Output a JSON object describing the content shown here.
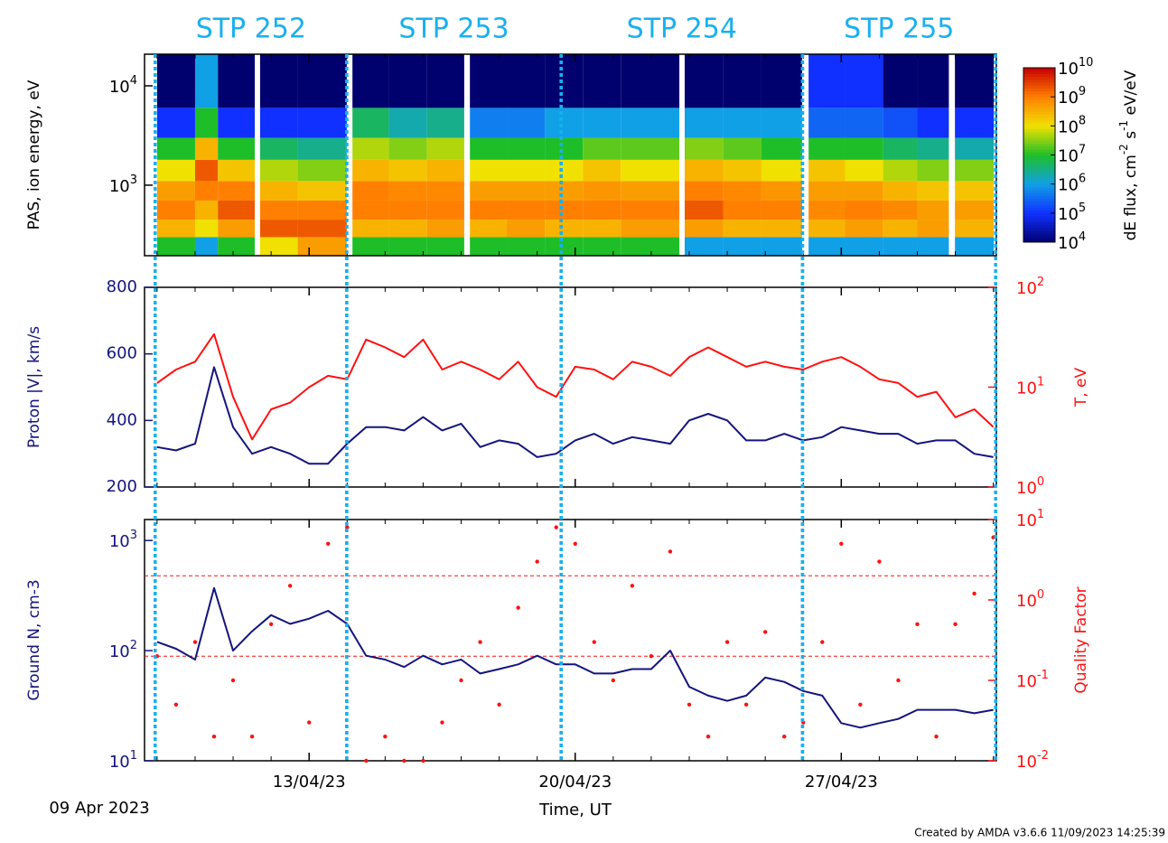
{
  "chart_data": [
    {
      "type": "heatmap",
      "ylabel": "PAS, ion energy, eV",
      "ylog": true,
      "ylim": [
        195,
        20800
      ],
      "yticks": [
        {
          "value": 1000,
          "label": "10",
          "sup": "3"
        },
        {
          "value": 10000,
          "label": "10",
          "sup": "4"
        }
      ],
      "x_edges": [
        9.0,
        10.0,
        10.6,
        11.57,
        11.71,
        12.7,
        13.99,
        14.14,
        15.1,
        16.1,
        17.08,
        17.23,
        18.2,
        19.2,
        20.2,
        21.2,
        22.74,
        22.88,
        23.9,
        24.9,
        25.97,
        26.14,
        27.1,
        28.1,
        29.0,
        29.83,
        29.99,
        31.01
      ],
      "y_edges": [
        195,
        300,
        450,
        700,
        1100,
        1800,
        3000,
        6000,
        20800
      ],
      "values": [
        [
          10000000.0,
          300000000.0,
          1000000000.0,
          500000000.0,
          100000000.0,
          10000000.0,
          100000.0,
          10000.0
        ],
        [
          1000000.0,
          100000000.0,
          300000000.0,
          1000000000.0,
          2000000000.0,
          300000000.0,
          10000000.0,
          1000000.0
        ],
        [
          10000000.0,
          500000000.0,
          2000000000.0,
          1000000000.0,
          200000000.0,
          10000000.0,
          100000.0,
          10000.0
        ],
        null,
        [
          100000000.0,
          2000000000.0,
          1000000000.0,
          300000000.0,
          50000000.0,
          5000000.0,
          100000.0,
          10000.0
        ],
        [
          500000000.0,
          2000000000.0,
          1000000000.0,
          200000000.0,
          30000000.0,
          3000000.0,
          100000.0,
          10000.0
        ],
        null,
        [
          10000000.0,
          300000000.0,
          1000000000.0,
          1000000000.0,
          300000000.0,
          50000000.0,
          5000000.0,
          10000.0
        ],
        [
          10000000.0,
          300000000.0,
          1000000000.0,
          800000000.0,
          200000000.0,
          30000000.0,
          2000000.0,
          10000.0
        ],
        [
          10000000.0,
          500000000.0,
          1000000000.0,
          800000000.0,
          300000000.0,
          50000000.0,
          3000000.0,
          10000.0
        ],
        null,
        [
          10000000.0,
          300000000.0,
          1000000000.0,
          500000000.0,
          100000000.0,
          10000000.0,
          500000.0,
          10000.0
        ],
        [
          10000000.0,
          500000000.0,
          1000000000.0,
          500000000.0,
          100000000.0,
          10000000.0,
          500000.0,
          10000.0
        ],
        [
          10000000.0,
          300000000.0,
          1000000000.0,
          500000000.0,
          100000000.0,
          10000000.0,
          1000000.0,
          10000.0
        ],
        [
          10000000.0,
          300000000.0,
          1000000000.0,
          600000000.0,
          200000000.0,
          20000000.0,
          1000000.0,
          10000.0
        ],
        [
          10000000.0,
          500000000.0,
          1000000000.0,
          500000000.0,
          100000000.0,
          20000000.0,
          1000000.0,
          10000.0
        ],
        null,
        [
          1000000.0,
          500000000.0,
          2000000000.0,
          1000000000.0,
          300000000.0,
          30000000.0,
          1000000.0,
          10000.0
        ],
        [
          1000000.0,
          300000000.0,
          1000000000.0,
          800000000.0,
          200000000.0,
          20000000.0,
          1000000.0,
          10000.0
        ],
        [
          1000000.0,
          300000000.0,
          1000000000.0,
          600000000.0,
          100000000.0,
          10000000.0,
          1000000.0,
          10000.0
        ],
        null,
        [
          1000000.0,
          300000000.0,
          800000000.0,
          500000000.0,
          200000000.0,
          10000000.0,
          300000.0,
          100000.0
        ],
        [
          1000000.0,
          500000000.0,
          1000000000.0,
          500000000.0,
          100000000.0,
          10000000.0,
          300000.0,
          100000.0
        ],
        [
          1000000.0,
          300000000.0,
          800000000.0,
          300000000.0,
          50000000.0,
          5000000.0,
          200000.0,
          10000.0
        ],
        [
          1000000.0,
          500000000.0,
          500000000.0,
          200000000.0,
          30000000.0,
          3000000.0,
          100000.0,
          10000.0
        ],
        null,
        [
          1000000.0,
          300000000.0,
          500000000.0,
          200000000.0,
          30000000.0,
          2000000.0,
          100000.0,
          10000.0
        ]
      ],
      "colorbar": {
        "log": true,
        "lim": [
          10000.0,
          10000000000.0
        ],
        "ticks": [
          {
            "value": 10000.0,
            "label": "10",
            "sup": "4"
          },
          {
            "value": 100000.0,
            "label": "10",
            "sup": "5"
          },
          {
            "value": 1000000.0,
            "label": "10",
            "sup": "6"
          },
          {
            "value": 10000000.0,
            "label": "10",
            "sup": "7"
          },
          {
            "value": 100000000.0,
            "label": "10",
            "sup": "8"
          },
          {
            "value": 1000000000.0,
            "label": "10",
            "sup": "9"
          },
          {
            "value": 10000000000.0,
            "label": "10",
            "sup": "10"
          }
        ],
        "label": [
          {
            "text": "dE flux, cm"
          },
          {
            "sup": "-2"
          },
          {
            "text": " s"
          },
          {
            "sup": "-1"
          },
          {
            "text": " eV/eV"
          }
        ]
      }
    },
    {
      "type": "line",
      "ylabel": "Proton |V|, km/s",
      "y2label": "T, eV",
      "ylim": [
        200,
        800
      ],
      "yticks": [
        200,
        400,
        600,
        800
      ],
      "y2log": true,
      "y2lim": [
        1,
        100
      ],
      "y2ticks": [
        {
          "value": 1,
          "label": "10",
          "sup": "0"
        },
        {
          "value": 10,
          "label": "10",
          "sup": "1"
        },
        {
          "value": 100,
          "label": "10",
          "sup": "2"
        }
      ],
      "x": [
        9.0,
        9.5,
        10.0,
        10.5,
        11.0,
        11.5,
        12.0,
        12.5,
        13.0,
        13.5,
        14.0,
        14.5,
        15.0,
        15.5,
        16.0,
        16.5,
        17.0,
        17.5,
        18.0,
        18.5,
        19.0,
        19.5,
        20.0,
        20.5,
        21.0,
        21.5,
        22.0,
        22.5,
        23.0,
        23.5,
        24.0,
        24.5,
        25.0,
        25.5,
        26.0,
        26.5,
        27.0,
        27.5,
        28.0,
        28.5,
        29.0,
        29.5,
        30.0,
        30.5,
        31.0
      ],
      "series": [
        {
          "color": "#14147e",
          "values": [
            320,
            310,
            330,
            560,
            380,
            300,
            320,
            300,
            270,
            270,
            330,
            380,
            380,
            370,
            410,
            370,
            390,
            320,
            340,
            330,
            290,
            300,
            340,
            360,
            330,
            350,
            340,
            330,
            400,
            420,
            400,
            340,
            340,
            360,
            340,
            350,
            380,
            370,
            360,
            360,
            330,
            340,
            340,
            300,
            290
          ]
        },
        {
          "color": "#ff1010",
          "axis": "y2",
          "values": [
            11,
            15,
            18,
            34,
            8,
            3,
            6,
            7,
            10,
            13,
            12,
            30,
            25,
            20,
            30,
            15,
            18,
            15,
            12,
            18,
            10,
            8,
            16,
            15,
            12,
            18,
            16,
            13,
            20,
            25,
            20,
            16,
            18,
            16,
            15,
            18,
            20,
            16,
            12,
            11,
            8,
            9,
            5,
            6,
            4
          ]
        }
      ]
    },
    {
      "type": "line",
      "ylabel": "Ground N, cm-3",
      "y2label": "Quality Factor",
      "ylog": true,
      "ylim": [
        10,
        1550
      ],
      "yticks": [
        {
          "value": 10,
          "label": "10",
          "sup": "1"
        },
        {
          "value": 100,
          "label": "10",
          "sup": "2"
        },
        {
          "value": 1000,
          "label": "10",
          "sup": "3"
        }
      ],
      "y2log": true,
      "y2lim": [
        0.01,
        10
      ],
      "y2ticks": [
        {
          "value": 0.01,
          "label": "10",
          "sup": "-2"
        },
        {
          "value": 0.1,
          "label": "10",
          "sup": "-1"
        },
        {
          "value": 1,
          "label": "10",
          "sup": "0"
        },
        {
          "value": 10,
          "label": "10",
          "sup": "1"
        }
      ],
      "y2_refs": [
        2,
        0.2
      ],
      "xlim": [
        8.67,
        31.08
      ],
      "xticks": [
        {
          "value": 13,
          "label": "13/04/23"
        },
        {
          "value": 20,
          "label": "20/04/23"
        },
        {
          "value": 27,
          "label": "27/04/23"
        }
      ],
      "xminorticks": [
        9,
        10,
        11,
        12,
        14,
        15,
        16,
        17,
        18,
        19,
        21,
        22,
        23,
        24,
        25,
        26,
        28,
        29,
        30,
        31
      ],
      "xlabel": "Time, UT",
      "start_label": "09 Apr 2023",
      "x": [
        9.0,
        9.5,
        10.0,
        10.5,
        11.0,
        11.5,
        12.0,
        12.5,
        13.0,
        13.5,
        14.0,
        14.5,
        15.0,
        15.5,
        16.0,
        16.5,
        17.0,
        17.5,
        18.0,
        18.5,
        19.0,
        19.5,
        20.0,
        20.5,
        21.0,
        21.5,
        22.0,
        22.5,
        23.0,
        23.5,
        24.0,
        24.5,
        25.0,
        25.5,
        26.0,
        26.5,
        27.0,
        27.5,
        28.0,
        28.5,
        29.0,
        29.5,
        30.0,
        30.5,
        31.0
      ],
      "series": [
        {
          "color": "#14147e",
          "values": [
            120,
            104,
            83,
            370,
            100,
            150,
            210,
            175,
            195,
            230,
            175,
            90,
            83,
            71,
            90,
            75,
            83,
            62,
            68,
            75,
            90,
            75,
            75,
            62,
            62,
            68,
            68,
            100,
            47,
            39,
            35,
            39,
            57,
            52,
            43,
            39,
            22,
            20,
            22,
            24,
            29,
            29,
            29,
            27,
            29
          ]
        },
        {
          "color": "#ff1010",
          "axis": "y2",
          "points": true,
          "values": [
            0.2,
            0.05,
            0.3,
            0.02,
            0.1,
            0.02,
            0.5,
            1.5,
            0.03,
            5,
            8,
            0.01,
            0.02,
            0.01,
            0.01,
            0.03,
            0.1,
            0.3,
            0.05,
            0.8,
            3,
            8,
            5,
            0.3,
            0.1,
            1.5,
            0.2,
            4,
            0.05,
            0.02,
            0.3,
            0.05,
            0.4,
            0.02,
            0.03,
            0.3,
            5,
            0.05,
            3,
            0.1,
            0.5,
            0.02,
            0.5,
            1.2,
            6
          ]
        }
      ]
    }
  ],
  "intervals": [
    {
      "label": "STP 252",
      "start": 8.95,
      "end": 13.99
    },
    {
      "label": "STP 253",
      "start": 13.99,
      "end": 19.63
    },
    {
      "label": "STP 254",
      "start": 19.63,
      "end": 25.98
    },
    {
      "label": "STP 255",
      "start": 25.98,
      "end": 31.06
    }
  ],
  "interval_color": "#19b0ee",
  "footer": "Created by AMDA v3.6.6 11/09/2023 14:25:39"
}
